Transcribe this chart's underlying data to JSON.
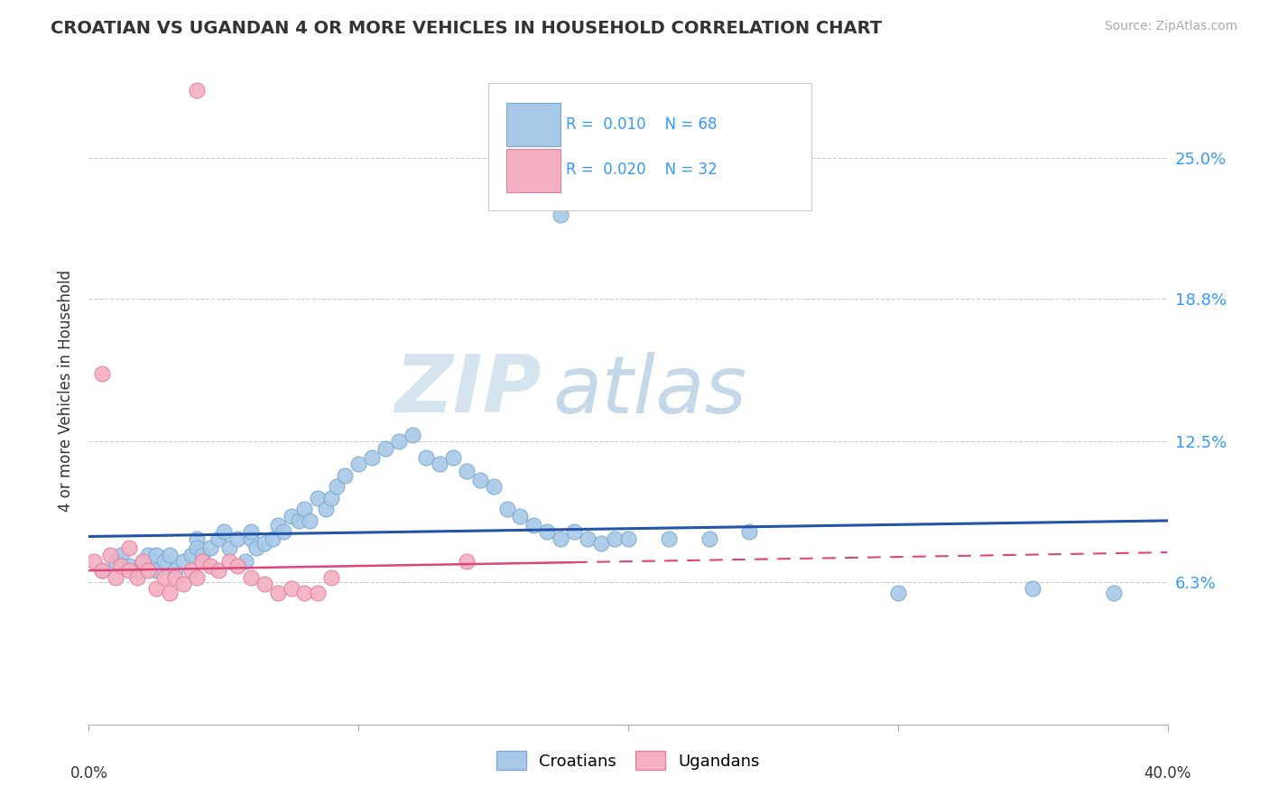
{
  "title": "CROATIAN VS UGANDAN 4 OR MORE VEHICLES IN HOUSEHOLD CORRELATION CHART",
  "source": "Source: ZipAtlas.com",
  "ylabel": "4 or more Vehicles in Household",
  "ytick_labels": [
    "6.3%",
    "12.5%",
    "18.8%",
    "25.0%"
  ],
  "ytick_values": [
    0.063,
    0.125,
    0.188,
    0.25
  ],
  "xlim": [
    0.0,
    0.4
  ],
  "ylim": [
    0.0,
    0.295
  ],
  "croatian_color": "#a8c8e8",
  "ugandan_color": "#f4b0c0",
  "croatian_edge": "#7aaad0",
  "ugandan_edge": "#e080a0",
  "trend_croatian_color": "#2255aa",
  "trend_ugandan_color": "#dd4477",
  "croatian_R": "0.010",
  "croatian_N": "68",
  "ugandan_R": "0.020",
  "ugandan_N": "32",
  "legend_label_croatian": "Croatians",
  "legend_label_ugandan": "Ugandans",
  "watermark_zip": "ZIP",
  "watermark_atlas": "atlas",
  "croatian_x": [
    0.005,
    0.01,
    0.012,
    0.015,
    0.018,
    0.02,
    0.022,
    0.025,
    0.025,
    0.028,
    0.03,
    0.032,
    0.035,
    0.038,
    0.04,
    0.04,
    0.042,
    0.045,
    0.048,
    0.05,
    0.052,
    0.055,
    0.058,
    0.06,
    0.06,
    0.062,
    0.065,
    0.068,
    0.07,
    0.072,
    0.075,
    0.078,
    0.08,
    0.082,
    0.085,
    0.088,
    0.09,
    0.092,
    0.095,
    0.1,
    0.105,
    0.11,
    0.115,
    0.12,
    0.125,
    0.13,
    0.135,
    0.14,
    0.145,
    0.15,
    0.155,
    0.16,
    0.165,
    0.17,
    0.175,
    0.18,
    0.185,
    0.19,
    0.195,
    0.2,
    0.215,
    0.23,
    0.245,
    0.3,
    0.35,
    0.38,
    0.165,
    0.175
  ],
  "croatian_y": [
    0.068,
    0.072,
    0.075,
    0.07,
    0.068,
    0.072,
    0.075,
    0.068,
    0.075,
    0.072,
    0.075,
    0.068,
    0.072,
    0.075,
    0.082,
    0.078,
    0.075,
    0.078,
    0.082,
    0.085,
    0.078,
    0.082,
    0.072,
    0.082,
    0.085,
    0.078,
    0.08,
    0.082,
    0.088,
    0.085,
    0.092,
    0.09,
    0.095,
    0.09,
    0.1,
    0.095,
    0.1,
    0.105,
    0.11,
    0.115,
    0.118,
    0.122,
    0.125,
    0.128,
    0.118,
    0.115,
    0.118,
    0.112,
    0.108,
    0.105,
    0.095,
    0.092,
    0.088,
    0.085,
    0.082,
    0.085,
    0.082,
    0.08,
    0.082,
    0.082,
    0.082,
    0.082,
    0.085,
    0.058,
    0.06,
    0.058,
    0.245,
    0.225
  ],
  "ugandan_x": [
    0.002,
    0.005,
    0.008,
    0.01,
    0.012,
    0.015,
    0.015,
    0.018,
    0.02,
    0.022,
    0.025,
    0.028,
    0.03,
    0.032,
    0.035,
    0.038,
    0.04,
    0.042,
    0.045,
    0.048,
    0.052,
    0.055,
    0.06,
    0.065,
    0.07,
    0.075,
    0.08,
    0.085,
    0.09,
    0.14,
    0.005,
    0.04
  ],
  "ugandan_y": [
    0.072,
    0.068,
    0.075,
    0.065,
    0.07,
    0.068,
    0.078,
    0.065,
    0.072,
    0.068,
    0.06,
    0.065,
    0.058,
    0.065,
    0.062,
    0.068,
    0.065,
    0.072,
    0.07,
    0.068,
    0.072,
    0.07,
    0.065,
    0.062,
    0.058,
    0.06,
    0.058,
    0.058,
    0.065,
    0.072,
    0.155,
    0.28
  ]
}
